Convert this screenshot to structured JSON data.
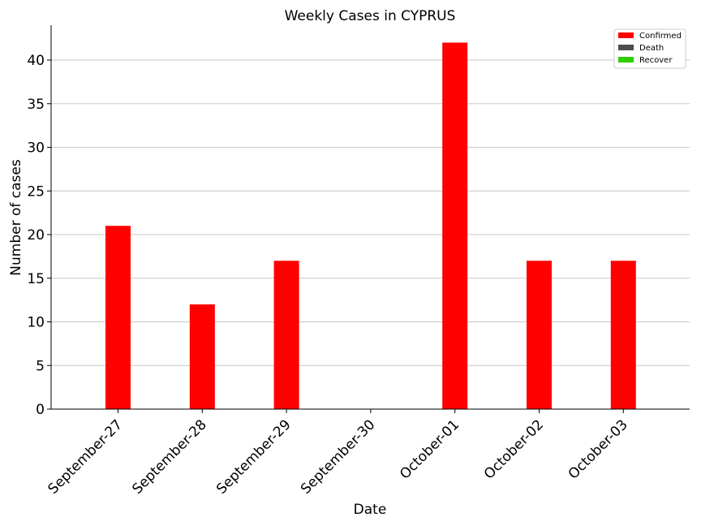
{
  "chart_data": {
    "type": "bar",
    "title": "Weekly Cases in CYPRUS",
    "xlabel": "Date",
    "ylabel": "Number of cases",
    "categories": [
      "September-27",
      "September-28",
      "September-29",
      "September-30",
      "October-01",
      "October-02",
      "October-03"
    ],
    "series": [
      {
        "name": "Confirmed",
        "color": "#ff0000",
        "values": [
          21,
          12,
          17,
          0,
          42,
          17,
          17
        ]
      },
      {
        "name": "Death",
        "color": "#4d4d4d",
        "values": [
          0,
          0,
          0,
          0,
          0,
          0,
          0
        ]
      },
      {
        "name": "Recover",
        "color": "#33cc00",
        "values": [
          0,
          0,
          0,
          0,
          0,
          0,
          0
        ]
      }
    ],
    "ylim": [
      0,
      44
    ],
    "yticks": [
      0,
      5,
      10,
      15,
      20,
      25,
      30,
      35,
      40
    ],
    "grid": "y",
    "legend": "top-right"
  }
}
